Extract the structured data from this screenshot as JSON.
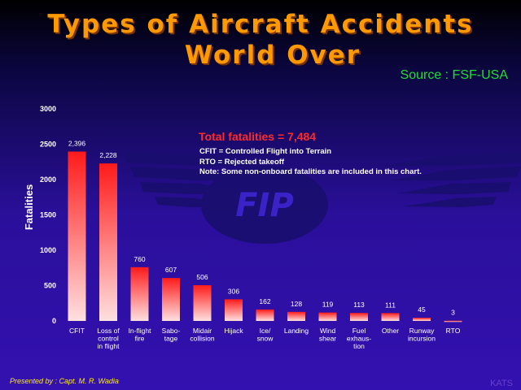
{
  "header": {
    "title_line1": "Types of Aircraft Accidents",
    "title_line2": "World Over",
    "source": "Source : FSF-USA"
  },
  "notes": {
    "total": "Total fatalities = 7,484",
    "line1": "CFIT = Controlled Flight into Terrain",
    "line2": "RTO = Rejected takeoff",
    "line3": "Note: Some non-onboard fatalities are included in this chart."
  },
  "logo": {
    "text": "FIP"
  },
  "footer": {
    "presenter": "Presented by : Capt. M. R. Wadia",
    "corner": "KATS"
  },
  "colors": {
    "title": "#ff9900",
    "bar_top": "#ff1a1a",
    "bar_bottom": "#ffe0e0",
    "total_text": "#ff2a2a",
    "source": "#22dd33"
  },
  "chart_data": {
    "type": "bar",
    "ylabel": "Fatalities",
    "ylim": [
      0,
      3000
    ],
    "yticks": [
      0,
      500,
      1000,
      1500,
      2000,
      2500,
      3000
    ],
    "categories": [
      [
        "CFIT"
      ],
      [
        "Loss of",
        "control",
        "in flight"
      ],
      [
        "In-flight",
        "fire"
      ],
      [
        "Sabo-",
        "tage"
      ],
      [
        "Midair",
        "collision"
      ],
      [
        "Hijack"
      ],
      [
        "Ice/",
        "snow"
      ],
      [
        "Landing"
      ],
      [
        "Wind",
        "shear"
      ],
      [
        "Fuel",
        "exhaus-",
        "tion"
      ],
      [
        "Other"
      ],
      [
        "Runway",
        "incursion"
      ],
      [
        "RTO"
      ]
    ],
    "values": [
      2396,
      2228,
      760,
      607,
      506,
      306,
      162,
      128,
      119,
      113,
      111,
      45,
      3
    ],
    "value_labels": [
      "2,396",
      "2,228",
      "760",
      "607",
      "506",
      "306",
      "162",
      "128",
      "119",
      "113",
      "111",
      "45",
      "3"
    ]
  }
}
